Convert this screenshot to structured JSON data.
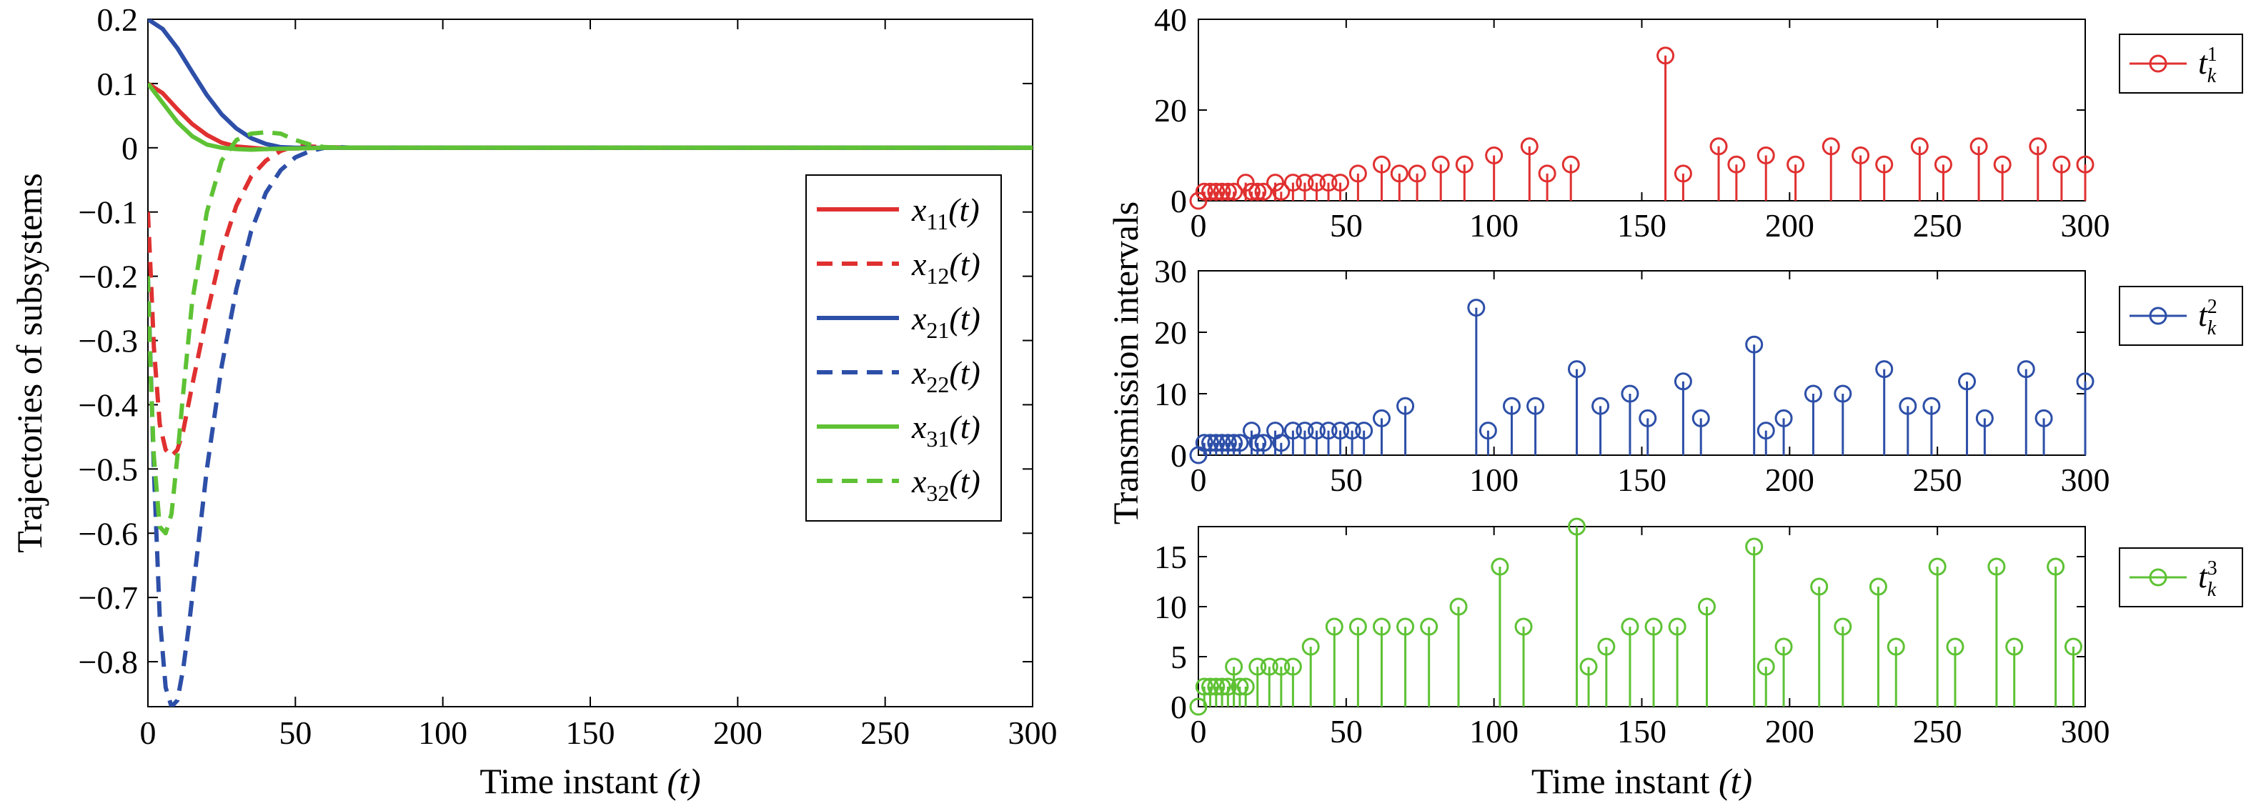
{
  "chart_data": [
    {
      "type": "line",
      "xlabel": "Time instant",
      "xlabel_var": "(t)",
      "ylabel": "Trajectories of subsystems",
      "xlim": [
        0,
        300
      ],
      "ylim": [
        -0.87,
        0.2
      ],
      "xticks": [
        0,
        50,
        100,
        150,
        200,
        250,
        300
      ],
      "yticks": [
        0.2,
        0.1,
        0,
        -0.1,
        -0.2,
        -0.3,
        -0.4,
        -0.5,
        -0.6,
        -0.7,
        -0.8
      ],
      "ytick_labels": [
        "0.2",
        "0.1",
        "0",
        "−0.1",
        "−0.2",
        "−0.3",
        "−0.4",
        "−0.5",
        "−0.6",
        "−0.7",
        "−0.8"
      ],
      "legend_position": "center-right",
      "series": [
        {
          "name": "x11(t)",
          "label_main": "x",
          "label_sub": "11",
          "label_arg": "(t)",
          "color": "#e03030",
          "style": "solid",
          "x": [
            0,
            5,
            10,
            15,
            20,
            25,
            30,
            35,
            40,
            50,
            60,
            300
          ],
          "y": [
            0.1,
            0.085,
            0.06,
            0.037,
            0.02,
            0.008,
            0.002,
            0.0,
            -0.002,
            -0.001,
            0,
            0
          ]
        },
        {
          "name": "x12(t)",
          "label_main": "x",
          "label_sub": "12",
          "label_arg": "(t)",
          "color": "#e03030",
          "style": "dashed",
          "x": [
            0,
            1,
            2,
            4,
            6,
            8,
            10,
            12,
            15,
            20,
            25,
            30,
            35,
            40,
            45,
            50,
            55,
            60,
            70,
            300
          ],
          "y": [
            -0.1,
            -0.2,
            -0.31,
            -0.43,
            -0.47,
            -0.48,
            -0.47,
            -0.44,
            -0.37,
            -0.26,
            -0.16,
            -0.09,
            -0.045,
            -0.02,
            -0.005,
            0.003,
            0.002,
            0.001,
            0,
            0
          ]
        },
        {
          "name": "x21(t)",
          "label_main": "x",
          "label_sub": "21",
          "label_arg": "(t)",
          "color": "#2d4fa8",
          "style": "solid",
          "x": [
            0,
            5,
            10,
            15,
            20,
            25,
            30,
            35,
            40,
            45,
            50,
            60,
            300
          ],
          "y": [
            0.2,
            0.185,
            0.155,
            0.118,
            0.082,
            0.052,
            0.03,
            0.015,
            0.006,
            0.001,
            0.0,
            0,
            0
          ]
        },
        {
          "name": "x22(t)",
          "label_main": "x",
          "label_sub": "22",
          "label_arg": "(t)",
          "color": "#2d4fa8",
          "style": "dashed",
          "x": [
            0,
            1,
            2,
            4,
            6,
            8,
            10,
            12,
            14,
            17,
            20,
            25,
            30,
            35,
            40,
            45,
            50,
            55,
            60,
            65,
            70,
            300
          ],
          "y": [
            -0.2,
            -0.35,
            -0.5,
            -0.73,
            -0.84,
            -0.87,
            -0.86,
            -0.81,
            -0.74,
            -0.62,
            -0.5,
            -0.34,
            -0.22,
            -0.13,
            -0.07,
            -0.035,
            -0.015,
            -0.005,
            0.0,
            0.001,
            0,
            0
          ]
        },
        {
          "name": "x31(t)",
          "label_main": "x",
          "label_sub": "31",
          "label_arg": "(t)",
          "color": "#5ec234",
          "style": "solid",
          "x": [
            0,
            5,
            10,
            15,
            20,
            25,
            30,
            35,
            40,
            50,
            60,
            300
          ],
          "y": [
            0.1,
            0.07,
            0.04,
            0.018,
            0.005,
            0.0,
            -0.002,
            -0.003,
            -0.002,
            -0.001,
            0,
            0
          ]
        },
        {
          "name": "x32(t)",
          "label_main": "x",
          "label_sub": "32",
          "label_arg": "(t)",
          "color": "#5ec234",
          "style": "dashed",
          "x": [
            0,
            1,
            2,
            4,
            6,
            8,
            10,
            12,
            15,
            20,
            25,
            30,
            35,
            40,
            45,
            50,
            55,
            60,
            70,
            300
          ],
          "y": [
            -0.2,
            -0.36,
            -0.48,
            -0.59,
            -0.6,
            -0.57,
            -0.48,
            -0.38,
            -0.24,
            -0.1,
            -0.02,
            0.012,
            0.022,
            0.024,
            0.022,
            0.012,
            0.005,
            0.001,
            0,
            0
          ]
        }
      ]
    },
    {
      "type": "stem",
      "xlabel": "",
      "ylabel": "Transmission intervals",
      "xlim": [
        0,
        300
      ],
      "ylim": [
        0,
        40
      ],
      "xticks": [
        0,
        50,
        100,
        150,
        200,
        250,
        300
      ],
      "yticks": [
        0,
        20,
        40
      ],
      "legend": {
        "main": "t",
        "sup": "1",
        "sub": "k"
      },
      "color": "#e03030",
      "x": [
        0,
        2,
        4,
        6,
        8,
        10,
        12,
        16,
        18,
        20,
        22,
        26,
        28,
        32,
        36,
        40,
        44,
        48,
        54,
        62,
        68,
        74,
        82,
        90,
        100,
        112,
        118,
        126,
        158,
        164,
        176,
        182,
        192,
        202,
        214,
        224,
        232,
        244,
        252,
        264,
        272,
        284,
        292,
        300
      ],
      "y": [
        0,
        2,
        2,
        2,
        2,
        2,
        2,
        4,
        2,
        2,
        2,
        4,
        2,
        4,
        4,
        4,
        4,
        4,
        6,
        8,
        6,
        6,
        8,
        8,
        10,
        12,
        6,
        8,
        32,
        6,
        12,
        8,
        10,
        8,
        12,
        10,
        8,
        12,
        8,
        12,
        8,
        12,
        8,
        8
      ]
    },
    {
      "type": "stem",
      "xlabel": "",
      "ylabel": "",
      "xlim": [
        0,
        300
      ],
      "ylim": [
        0,
        30
      ],
      "xticks": [
        0,
        50,
        100,
        150,
        200,
        250,
        300
      ],
      "yticks": [
        0,
        10,
        20,
        30
      ],
      "legend": {
        "main": "t",
        "sup": "2",
        "sub": "k"
      },
      "color": "#2d4fa8",
      "x": [
        0,
        2,
        4,
        6,
        8,
        10,
        12,
        14,
        18,
        20,
        22,
        26,
        28,
        32,
        36,
        40,
        44,
        48,
        52,
        56,
        62,
        70,
        94,
        98,
        106,
        114,
        128,
        136,
        146,
        152,
        164,
        170,
        188,
        192,
        198,
        208,
        218,
        232,
        240,
        248,
        260,
        266,
        280,
        286,
        300
      ],
      "y": [
        0,
        2,
        2,
        2,
        2,
        2,
        2,
        2,
        4,
        2,
        2,
        4,
        2,
        4,
        4,
        4,
        4,
        4,
        4,
        4,
        6,
        8,
        24,
        4,
        8,
        8,
        14,
        8,
        10,
        6,
        12,
        6,
        18,
        4,
        6,
        10,
        10,
        14,
        8,
        8,
        12,
        6,
        14,
        6,
        12
      ]
    },
    {
      "type": "stem",
      "xlabel": "Time instant",
      "xlabel_var": "(t)",
      "ylabel": "",
      "xlim": [
        0,
        300
      ],
      "ylim": [
        0,
        18
      ],
      "xticks": [
        0,
        50,
        100,
        150,
        200,
        250,
        300
      ],
      "yticks": [
        0,
        5,
        10,
        15
      ],
      "legend": {
        "main": "t",
        "sup": "3",
        "sub": "k"
      },
      "color": "#5ec234",
      "x": [
        0,
        2,
        4,
        6,
        8,
        10,
        12,
        14,
        16,
        20,
        24,
        28,
        32,
        38,
        46,
        54,
        62,
        70,
        78,
        88,
        102,
        110,
        128,
        132,
        138,
        146,
        154,
        162,
        172,
        188,
        192,
        198,
        210,
        218,
        230,
        236,
        250,
        256,
        270,
        276,
        290,
        296
      ],
      "y": [
        0,
        2,
        2,
        2,
        2,
        2,
        4,
        2,
        2,
        4,
        4,
        4,
        4,
        6,
        8,
        8,
        8,
        8,
        8,
        10,
        14,
        8,
        18,
        4,
        6,
        8,
        8,
        8,
        10,
        16,
        4,
        6,
        12,
        8,
        12,
        6,
        14,
        6,
        14,
        6,
        14,
        6
      ]
    }
  ]
}
